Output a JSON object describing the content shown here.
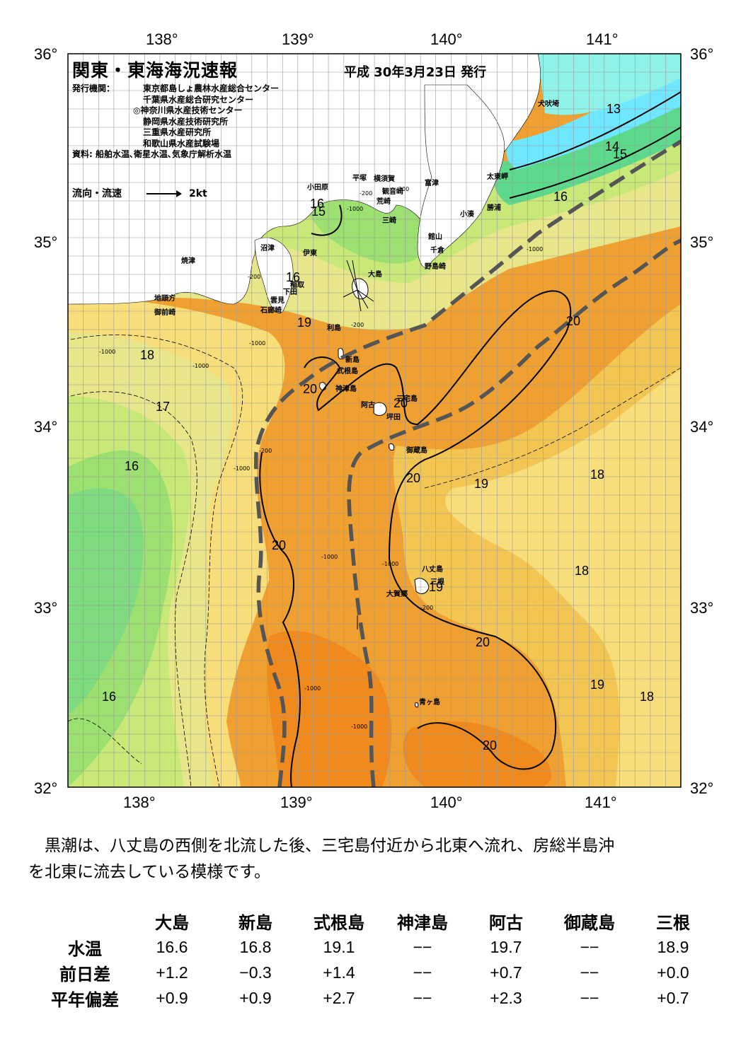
{
  "map": {
    "title": "関東・東海海況速報",
    "date": "平成 30年3月23日 発行",
    "publisher_label": "発行機関：",
    "publishers": [
      "東京都島しょ農林水産総合センター",
      "千葉県水産総合研究センター",
      "◎神奈川県水産技術センター",
      "静岡県水産技術研究所",
      "三重県水産研究所",
      "和歌山県水産試験場"
    ],
    "sources": "資料: 船舶水温､衛星水温､気象庁解析水温",
    "legend_label": "流向・流速",
    "legend_scale": "2kt",
    "lon_labels": [
      "138°",
      "139°",
      "140°",
      "141°"
    ],
    "lat_labels": [
      "36°",
      "35°",
      "34°",
      "33°",
      "32°"
    ],
    "colors": {
      "t13": "#6fe8ff",
      "t14": "#5cd98a",
      "t15": "#9be070",
      "t16": "#c8e878",
      "t17": "#e8e68a",
      "t18": "#f7de7a",
      "t19": "#f3c654",
      "t20": "#f0a030",
      "t21": "#f08a1c",
      "land": "#ffffff",
      "kuroshio": "#555555"
    },
    "place_names": [
      "犬吠埼",
      "太東岬",
      "勝浦",
      "小湊",
      "富津",
      "横須賀",
      "観音崎",
      "荒崎",
      "三崎",
      "平塚",
      "小田原",
      "館山",
      "千倉",
      "野島崎",
      "沼津",
      "伊東",
      "稲取",
      "下田",
      "雲見",
      "石廊崎",
      "焼津",
      "地頭方",
      "御前崎",
      "大島",
      "利島",
      "新島",
      "式根島",
      "神津島",
      "三宅島",
      "阿古",
      "坪田",
      "御蔵島",
      "八丈島",
      "三根",
      "大賀郷",
      "青ヶ島"
    ],
    "isotherms": [
      "13",
      "14",
      "15",
      "16",
      "15",
      "16",
      "16",
      "18",
      "17",
      "16",
      "19",
      "20",
      "20",
      "20",
      "20",
      "19",
      "18",
      "18",
      "20",
      "20",
      "19",
      "18",
      "16",
      "20",
      "19",
      "19"
    ],
    "depths": [
      "-200",
      "-1000",
      "-200",
      "-200",
      "-1000",
      "-200",
      "-1000",
      "-1000",
      "-1000",
      "-200",
      "-1000",
      "-1000",
      "-1000",
      "-1000",
      "-200",
      "-1000"
    ]
  },
  "comment": [
    "黒潮は、八丈島の西側を北流した後、三宅島付近から北東へ流れ、房総半島沖",
    "を北東に流去している模様です。"
  ],
  "table": {
    "columns": [
      "大島",
      "新島",
      "式根島",
      "神津島",
      "阿古",
      "御蔵島",
      "三根"
    ],
    "rows": [
      {
        "label": "水温",
        "values": [
          "16.6",
          "16.8",
          "19.1",
          "−−",
          "19.7",
          "−−",
          "18.9"
        ]
      },
      {
        "label": "前日差",
        "values": [
          "+1.2",
          "−0.3",
          "+1.4",
          "−−",
          "+0.7",
          "−−",
          "+0.0"
        ]
      },
      {
        "label": "平年偏差",
        "values": [
          "+0.9",
          "+0.9",
          "+2.7",
          "−−",
          "+2.3",
          "−−",
          "+0.7"
        ]
      }
    ]
  }
}
